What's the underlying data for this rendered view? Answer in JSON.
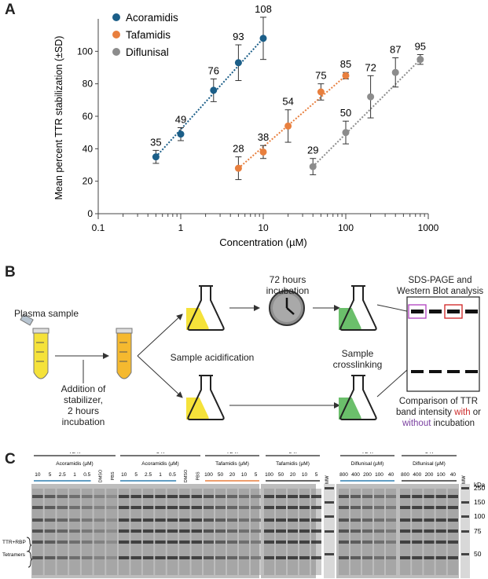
{
  "panelA": {
    "letter": "A",
    "chart_data": {
      "type": "scatter",
      "xscale": "log",
      "xlabel": "Concentration (µM)",
      "ylabel": "Mean percent TTR  stabilization (±SD)",
      "xlim": [
        0.1,
        1000
      ],
      "ylim": [
        0,
        120
      ],
      "xticks": [
        "0.1",
        "1",
        "10",
        "100",
        "1000"
      ],
      "yticks": [
        "0",
        "20",
        "40",
        "60",
        "80",
        "100"
      ],
      "legend_position": "top-left",
      "series": [
        {
          "name": "Acoramidis",
          "color": "#1b5e88",
          "x": [
            0.5,
            1,
            2.5,
            5,
            10
          ],
          "y": [
            35,
            49,
            76,
            93,
            108
          ],
          "err": [
            4,
            4,
            7,
            11,
            13
          ],
          "labels": [
            "35",
            "49",
            "76",
            "93",
            "108"
          ]
        },
        {
          "name": "Tafamidis",
          "color": "#e87f3e",
          "x": [
            5,
            10,
            20,
            50,
            100
          ],
          "y": [
            28,
            38,
            54,
            75,
            85
          ],
          "err": [
            7,
            4,
            10,
            5,
            2
          ],
          "labels": [
            "28",
            "38",
            "54",
            "75",
            "85"
          ]
        },
        {
          "name": "Diflunisal",
          "color": "#8c8c8c",
          "x": [
            40,
            100,
            200,
            400,
            800
          ],
          "y": [
            29,
            50,
            72,
            87,
            95
          ],
          "err": [
            5,
            7,
            13,
            9,
            3
          ],
          "labels": [
            "29",
            "50",
            "72",
            "87",
            "95"
          ]
        }
      ]
    }
  },
  "panelB": {
    "letter": "B",
    "plasma_sample": "Plasma sample",
    "addition_text": [
      "Addition of",
      "stabilizer,",
      "2 hours",
      "incubation"
    ],
    "acidification": "Sample acidification",
    "incubation": [
      "72 hours",
      "incubation"
    ],
    "crosslinking": [
      "Sample",
      "crosslinking"
    ],
    "sds_title": [
      "SDS-PAGE and",
      "Western Blot analysis"
    ],
    "comparison": [
      "Comparison of TTR",
      "band intensity "
    ],
    "with_word": "with",
    "or_word": " or",
    "without_word": "without",
    "incubation_word": " incubation",
    "colors": {
      "yellow": "#f5e23a",
      "green": "#6bbf6b",
      "with": "#cc2a2a",
      "without": "#7a3fa0"
    }
  },
  "panelC": {
    "letter": "C",
    "groups_time": [
      "72 h",
      "0 h",
      "72 h",
      "0 h",
      "72 h",
      "0 h"
    ],
    "drugs": [
      "Acoramidis (µM)",
      "Acoramidis (µM)",
      "Tafamidis (µM)",
      "Tafamidis (µM)",
      "Diflunisal (µM)",
      "Diflunisal (µM)"
    ],
    "aco_conc": [
      "10",
      "5",
      "2.5",
      "1",
      "0.5"
    ],
    "taf_conc": [
      "100",
      "50",
      "20",
      "10",
      "5"
    ],
    "dif_conc": [
      "800",
      "400",
      "200",
      "100",
      "40"
    ],
    "controls": [
      "DMSO",
      "PBS"
    ],
    "mw": "MW",
    "kda": "kDa",
    "mw_labels": [
      "250",
      "150",
      "100",
      "75",
      "50"
    ],
    "band_labels": [
      "TTR+RBP",
      "Tetramers"
    ]
  }
}
